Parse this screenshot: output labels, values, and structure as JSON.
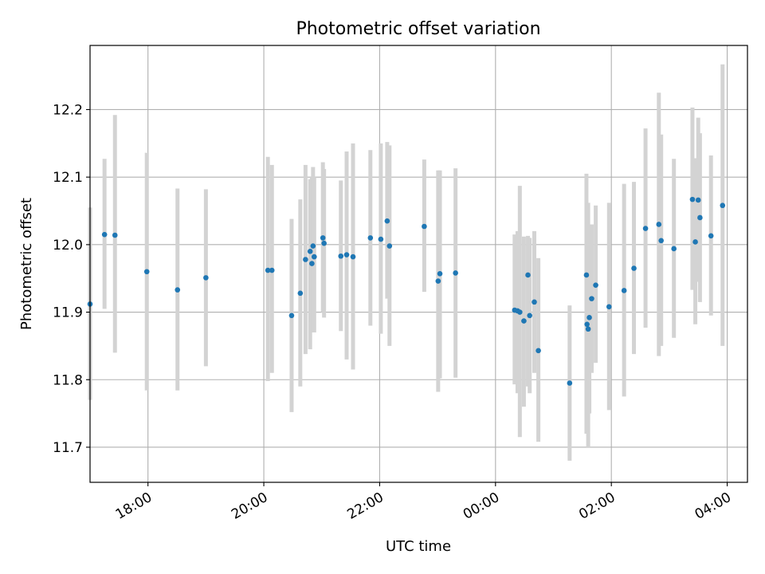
{
  "chart_data": {
    "type": "scatter",
    "title": "Photometric offset variation",
    "xlabel": "UTC time",
    "ylabel": "Photometric offset",
    "x_unit": "hours after 00:00 UTC",
    "xlim": [
      -7.0,
      4.35
    ],
    "ylim": [
      11.648,
      12.295
    ],
    "grid": true,
    "x_ticks": [
      {
        "value": -6,
        "label": "18:00"
      },
      {
        "value": -4,
        "label": "20:00"
      },
      {
        "value": -2,
        "label": "22:00"
      },
      {
        "value": 0,
        "label": "00:00"
      },
      {
        "value": 2,
        "label": "02:00"
      },
      {
        "value": 4,
        "label": "04:00"
      }
    ],
    "y_ticks": [
      {
        "value": 11.7,
        "label": "11.7"
      },
      {
        "value": 11.8,
        "label": "11.8"
      },
      {
        "value": 11.9,
        "label": "11.9"
      },
      {
        "value": 12.0,
        "label": "12.0"
      },
      {
        "value": 12.1,
        "label": "12.1"
      },
      {
        "value": 12.2,
        "label": "12.2"
      }
    ],
    "colors": {
      "point": "#1f77b4",
      "errorbar": "#d3d3d3",
      "grid": "#b0b0b0"
    },
    "points": [
      {
        "x": -7.0,
        "y": 11.912,
        "lo": 11.77,
        "hi": 12.055
      },
      {
        "x": -6.75,
        "y": 12.015,
        "lo": 11.905,
        "hi": 12.127
      },
      {
        "x": -6.57,
        "y": 12.014,
        "lo": 11.84,
        "hi": 12.192
      },
      {
        "x": -6.02,
        "y": 11.96,
        "lo": 11.784,
        "hi": 12.136
      },
      {
        "x": -5.49,
        "y": 11.933,
        "lo": 11.784,
        "hi": 12.083
      },
      {
        "x": -5.0,
        "y": 11.951,
        "lo": 11.82,
        "hi": 12.082
      },
      {
        "x": -3.93,
        "y": 11.962,
        "lo": 11.798,
        "hi": 12.13
      },
      {
        "x": -3.86,
        "y": 11.962,
        "lo": 11.81,
        "hi": 12.118
      },
      {
        "x": -3.52,
        "y": 11.895,
        "lo": 11.752,
        "hi": 12.038
      },
      {
        "x": -3.37,
        "y": 11.928,
        "lo": 11.79,
        "hi": 12.067
      },
      {
        "x": -3.28,
        "y": 11.978,
        "lo": 11.838,
        "hi": 12.118
      },
      {
        "x": -3.2,
        "y": 11.99,
        "lo": 11.845,
        "hi": 12.097
      },
      {
        "x": -3.17,
        "y": 11.972,
        "lo": 11.885,
        "hi": 12.1
      },
      {
        "x": -3.15,
        "y": 11.998,
        "lo": 11.87,
        "hi": 12.115
      },
      {
        "x": -3.13,
        "y": 11.982,
        "lo": 11.87,
        "hi": 12.1
      },
      {
        "x": -2.98,
        "y": 12.01,
        "lo": 11.9,
        "hi": 12.122
      },
      {
        "x": -2.96,
        "y": 12.002,
        "lo": 11.892,
        "hi": 12.112
      },
      {
        "x": -2.67,
        "y": 11.983,
        "lo": 11.872,
        "hi": 12.095
      },
      {
        "x": -2.57,
        "y": 11.985,
        "lo": 11.83,
        "hi": 12.138
      },
      {
        "x": -2.46,
        "y": 11.982,
        "lo": 11.815,
        "hi": 12.15
      },
      {
        "x": -2.16,
        "y": 12.01,
        "lo": 11.88,
        "hi": 12.14
      },
      {
        "x": -1.98,
        "y": 12.008,
        "lo": 11.868,
        "hi": 12.15
      },
      {
        "x": -1.87,
        "y": 12.035,
        "lo": 11.92,
        "hi": 12.152
      },
      {
        "x": -1.83,
        "y": 11.998,
        "lo": 11.85,
        "hi": 12.147
      },
      {
        "x": -1.23,
        "y": 12.027,
        "lo": 11.93,
        "hi": 12.126
      },
      {
        "x": -0.99,
        "y": 11.946,
        "lo": 11.782,
        "hi": 12.11
      },
      {
        "x": -0.96,
        "y": 11.957,
        "lo": 11.802,
        "hi": 12.11
      },
      {
        "x": -0.69,
        "y": 11.958,
        "lo": 11.803,
        "hi": 12.113
      },
      {
        "x": 0.33,
        "y": 11.903,
        "lo": 11.793,
        "hi": 12.015
      },
      {
        "x": 0.38,
        "y": 11.902,
        "lo": 11.78,
        "hi": 12.02
      },
      {
        "x": 0.42,
        "y": 11.9,
        "lo": 11.715,
        "hi": 12.087
      },
      {
        "x": 0.49,
        "y": 11.887,
        "lo": 11.76,
        "hi": 12.012
      },
      {
        "x": 0.56,
        "y": 11.955,
        "lo": 11.79,
        "hi": 12.013
      },
      {
        "x": 0.59,
        "y": 11.895,
        "lo": 11.78,
        "hi": 12.01
      },
      {
        "x": 0.67,
        "y": 11.915,
        "lo": 11.81,
        "hi": 12.02
      },
      {
        "x": 0.74,
        "y": 11.843,
        "lo": 11.708,
        "hi": 11.98
      },
      {
        "x": 1.28,
        "y": 11.795,
        "lo": 11.68,
        "hi": 11.91
      },
      {
        "x": 1.57,
        "y": 11.955,
        "lo": 11.72,
        "hi": 12.105
      },
      {
        "x": 1.58,
        "y": 11.882,
        "lo": 11.725,
        "hi": 12.04
      },
      {
        "x": 1.6,
        "y": 11.875,
        "lo": 11.7,
        "hi": 12.062
      },
      {
        "x": 1.62,
        "y": 11.892,
        "lo": 11.75,
        "hi": 12.03
      },
      {
        "x": 1.66,
        "y": 11.92,
        "lo": 11.81,
        "hi": 12.03
      },
      {
        "x": 1.73,
        "y": 11.94,
        "lo": 11.825,
        "hi": 12.058
      },
      {
        "x": 1.96,
        "y": 11.908,
        "lo": 11.755,
        "hi": 12.062
      },
      {
        "x": 2.22,
        "y": 11.932,
        "lo": 11.775,
        "hi": 12.09
      },
      {
        "x": 2.39,
        "y": 11.965,
        "lo": 11.838,
        "hi": 12.093
      },
      {
        "x": 2.59,
        "y": 12.024,
        "lo": 11.877,
        "hi": 12.172
      },
      {
        "x": 2.82,
        "y": 12.03,
        "lo": 11.835,
        "hi": 12.225
      },
      {
        "x": 2.86,
        "y": 12.006,
        "lo": 11.85,
        "hi": 12.163
      },
      {
        "x": 3.08,
        "y": 11.994,
        "lo": 11.862,
        "hi": 12.127
      },
      {
        "x": 3.4,
        "y": 12.067,
        "lo": 11.933,
        "hi": 12.203
      },
      {
        "x": 3.45,
        "y": 12.004,
        "lo": 11.882,
        "hi": 12.128
      },
      {
        "x": 3.5,
        "y": 12.066,
        "lo": 11.945,
        "hi": 12.188
      },
      {
        "x": 3.53,
        "y": 12.04,
        "lo": 11.915,
        "hi": 12.165
      },
      {
        "x": 3.72,
        "y": 12.013,
        "lo": 11.895,
        "hi": 12.132
      },
      {
        "x": 3.92,
        "y": 12.058,
        "lo": 11.85,
        "hi": 12.267
      }
    ]
  }
}
